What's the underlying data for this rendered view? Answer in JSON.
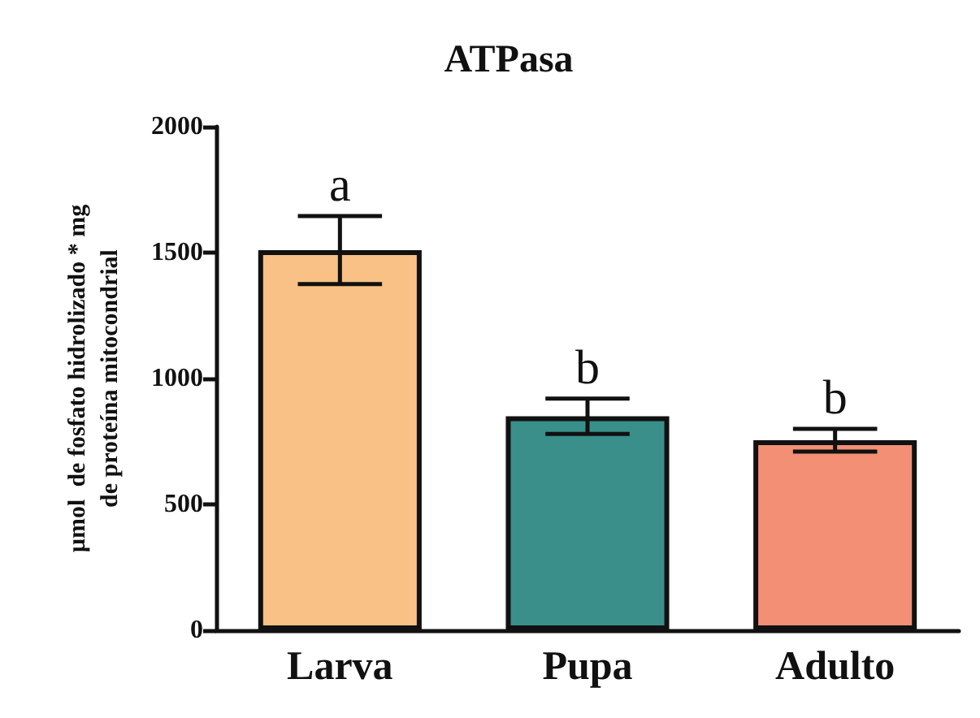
{
  "chart_data": {
    "type": "bar",
    "title": "ATPasa",
    "ylabel": "µmol  de fosfato hidrolizado * mg\nde proteína mitocondrial",
    "categories": [
      "Larva",
      "Pupa",
      "Adulto"
    ],
    "values": [
      1510,
      850,
      755
    ],
    "colors": [
      "#f9c185",
      "#3a8f8a",
      "#f28f74"
    ],
    "errors": [
      135,
      70,
      45
    ],
    "ylim": [
      0,
      2000
    ],
    "yticks": [
      0,
      500,
      1000,
      1500,
      2000
    ],
    "annotations": [
      {
        "text": "a",
        "x": "Larva",
        "y": 1645
      },
      {
        "text": "b",
        "x": "Pupa",
        "y": 920
      },
      {
        "text": "b",
        "x": "Adulto",
        "y": 800
      }
    ]
  }
}
